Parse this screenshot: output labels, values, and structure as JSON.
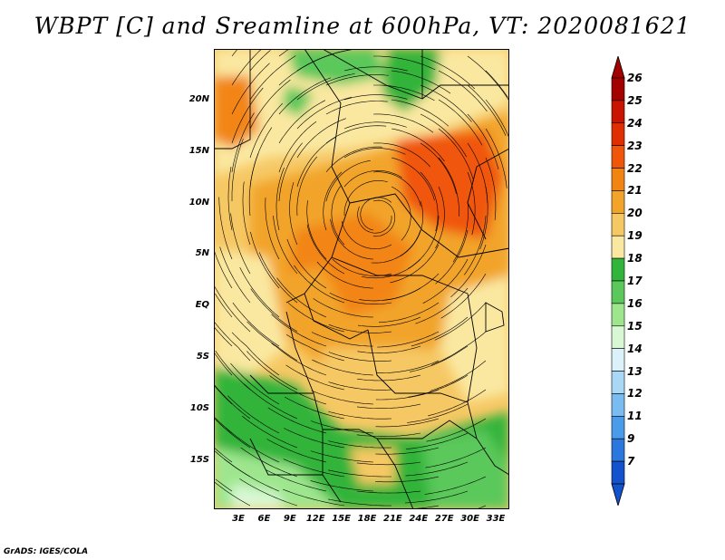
{
  "title": "WBPT [C] and Sreamline at 600hPa, VT: 2020081621",
  "footer": "GrADS: IGES/COLA",
  "map": {
    "lat_ticks": [
      "20N",
      "15N",
      "10N",
      "5N",
      "EQ",
      "5S",
      "10S",
      "15S"
    ],
    "lon_ticks": [
      "3E",
      "6E",
      "9E",
      "12E",
      "15E",
      "18E",
      "21E",
      "24E",
      "27E",
      "30E",
      "33E"
    ]
  },
  "colorbar": {
    "labels": [
      "26",
      "25",
      "24",
      "23",
      "22",
      "21",
      "20",
      "19",
      "18",
      "17",
      "16",
      "15",
      "14",
      "13",
      "12",
      "11",
      "9",
      "7"
    ],
    "colors": [
      "#a30000",
      "#c81400",
      "#e12e00",
      "#f0560a",
      "#f28512",
      "#f2a42a",
      "#f6c864",
      "#fae8a0",
      "#30b43a",
      "#5ac85a",
      "#9ee68e",
      "#d8f8d4",
      "#dcf2fa",
      "#a8d8f6",
      "#78bcf2",
      "#4a9cea",
      "#2a78de",
      "#1252cc"
    ]
  }
}
